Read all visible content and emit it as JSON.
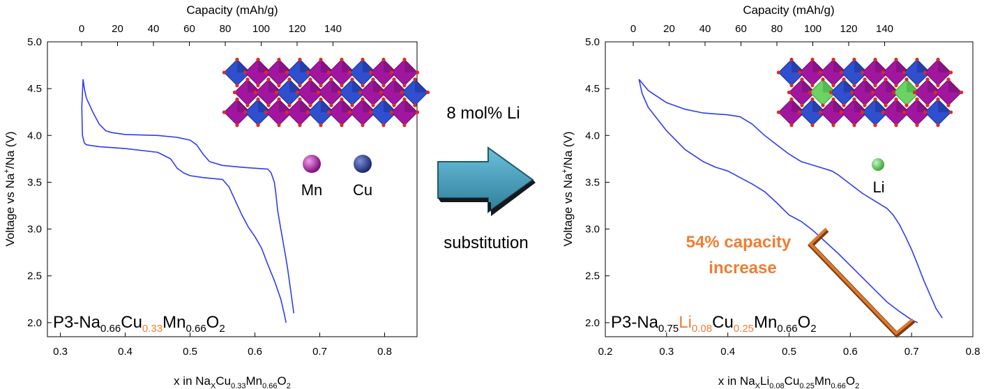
{
  "colors": {
    "curve": "#2e3cf0",
    "orange": "#ef7d33",
    "mn": "#a0199a",
    "cu": "#2d3f8f",
    "li": "#53c24d",
    "arrow": "#3e96b4"
  },
  "arrow": {
    "top_label": "8 mol% Li",
    "bottom_label": "substitution"
  },
  "left_panel": {
    "legend": {
      "mn": "Mn",
      "cu": "Cu"
    },
    "formula": {
      "prefix": "P3-Na",
      "s1": "0.66",
      "el2": "Cu",
      "s2": "0.33",
      "el3": "Mn",
      "s3": "0.66",
      "el4": "O",
      "s4": "2"
    },
    "xlabel": {
      "t1": "x in Na",
      "s1": "X",
      "t2": "Cu",
      "s2": "0.33",
      "t3": "Mn",
      "s3": "0.66",
      "t4": "O",
      "s4": "2"
    }
  },
  "right_panel": {
    "legend": {
      "li": "Li"
    },
    "formula": {
      "prefix": "P3-Na",
      "s1": "0.75",
      "el2": "Li",
      "s2": "0.08",
      "el3": "Cu",
      "s3": "0.25",
      "el4": "Mn",
      "s4": "0.66",
      "el5": "O",
      "s5": "2"
    },
    "xlabel": {
      "t1": "x in Na",
      "s1": "X",
      "t2": "Li",
      "s2": "0.08",
      "t3": "Cu",
      "s3": "0.25",
      "t4": "Mn",
      "s4": "0.66",
      "t5": "O",
      "s5": "2"
    },
    "annotation": {
      "line1": "54% capacity",
      "line2": "increase"
    }
  },
  "chart_data": [
    {
      "type": "line",
      "ylabel": "Voltage vs Na+/Na (V)",
      "ylim": [
        1.85,
        5.0
      ],
      "yticks": [
        "2.0",
        "2.5",
        "3.0",
        "3.5",
        "4.0",
        "4.5",
        "5.0"
      ],
      "xlim": [
        0.28,
        0.85
      ],
      "xticks": [
        "0.3",
        "0.4",
        "0.5",
        "0.6",
        "0.7",
        "0.8"
      ],
      "top_axis": {
        "label": "Capacity (mAh/g)",
        "ticks": [
          "0",
          "20",
          "40",
          "60",
          "80",
          "100",
          "120",
          "140"
        ]
      },
      "series": [
        {
          "x": [
            0.335,
            0.337,
            0.34,
            0.35,
            0.36,
            0.37,
            0.38,
            0.4,
            0.45,
            0.48,
            0.5,
            0.51,
            0.52,
            0.53,
            0.55,
            0.58,
            0.6,
            0.62,
            0.625,
            0.63,
            0.632,
            0.635,
            0.64,
            0.645,
            0.65,
            0.655,
            0.66
          ],
          "y": [
            4.6,
            4.5,
            4.4,
            4.25,
            4.12,
            4.05,
            4.03,
            4.01,
            4.0,
            3.98,
            3.95,
            3.9,
            3.8,
            3.72,
            3.68,
            3.66,
            3.65,
            3.64,
            3.6,
            3.5,
            3.4,
            3.2,
            3.0,
            2.8,
            2.6,
            2.35,
            2.1
          ]
        },
        {
          "x": [
            0.335,
            0.333,
            0.334,
            0.337,
            0.34,
            0.36,
            0.4,
            0.45,
            0.47,
            0.48,
            0.49,
            0.5,
            0.52,
            0.55,
            0.56,
            0.57,
            0.58,
            0.59,
            0.6,
            0.61,
            0.62,
            0.63,
            0.64,
            0.645,
            0.648
          ],
          "y": [
            4.6,
            4.3,
            4.0,
            3.92,
            3.9,
            3.88,
            3.86,
            3.82,
            3.75,
            3.65,
            3.6,
            3.57,
            3.55,
            3.53,
            3.45,
            3.3,
            3.15,
            3.02,
            2.92,
            2.8,
            2.62,
            2.45,
            2.25,
            2.1,
            2.0
          ]
        }
      ]
    },
    {
      "type": "line",
      "ylabel": "Voltage vs Na+/Na (V)",
      "ylim": [
        1.85,
        5.0
      ],
      "yticks": [
        "2.0",
        "2.5",
        "3.0",
        "3.5",
        "4.0",
        "4.5",
        "5.0"
      ],
      "xlim": [
        0.2,
        0.8
      ],
      "xticks": [
        "0.2",
        "0.3",
        "0.4",
        "0.5",
        "0.6",
        "0.7",
        "0.8"
      ],
      "top_axis": {
        "label": "Capacity (mAh/g)",
        "ticks": [
          "0",
          "20",
          "40",
          "60",
          "80",
          "100",
          "120",
          "140"
        ]
      },
      "series": [
        {
          "x": [
            0.255,
            0.27,
            0.3,
            0.33,
            0.36,
            0.38,
            0.4,
            0.42,
            0.44,
            0.46,
            0.48,
            0.5,
            0.52,
            0.55,
            0.57,
            0.58,
            0.6,
            0.62,
            0.64,
            0.66,
            0.67,
            0.68,
            0.69,
            0.7,
            0.71,
            0.72,
            0.73,
            0.74,
            0.75
          ],
          "y": [
            4.6,
            4.48,
            4.35,
            4.28,
            4.24,
            4.23,
            4.22,
            4.2,
            4.12,
            4.0,
            3.9,
            3.8,
            3.72,
            3.66,
            3.62,
            3.58,
            3.48,
            3.38,
            3.3,
            3.22,
            3.15,
            3.05,
            2.92,
            2.78,
            2.62,
            2.45,
            2.3,
            2.15,
            2.05
          ]
        },
        {
          "x": [
            0.255,
            0.26,
            0.27,
            0.3,
            0.33,
            0.36,
            0.38,
            0.4,
            0.42,
            0.44,
            0.46,
            0.48,
            0.5,
            0.52,
            0.54,
            0.56,
            0.58,
            0.6,
            0.62,
            0.64,
            0.66,
            0.68,
            0.7,
            0.71
          ],
          "y": [
            4.6,
            4.45,
            4.3,
            4.05,
            3.85,
            3.72,
            3.66,
            3.62,
            3.55,
            3.48,
            3.4,
            3.28,
            3.15,
            3.08,
            2.98,
            2.86,
            2.74,
            2.61,
            2.48,
            2.35,
            2.22,
            2.12,
            2.03,
            2.0
          ]
        }
      ]
    }
  ]
}
